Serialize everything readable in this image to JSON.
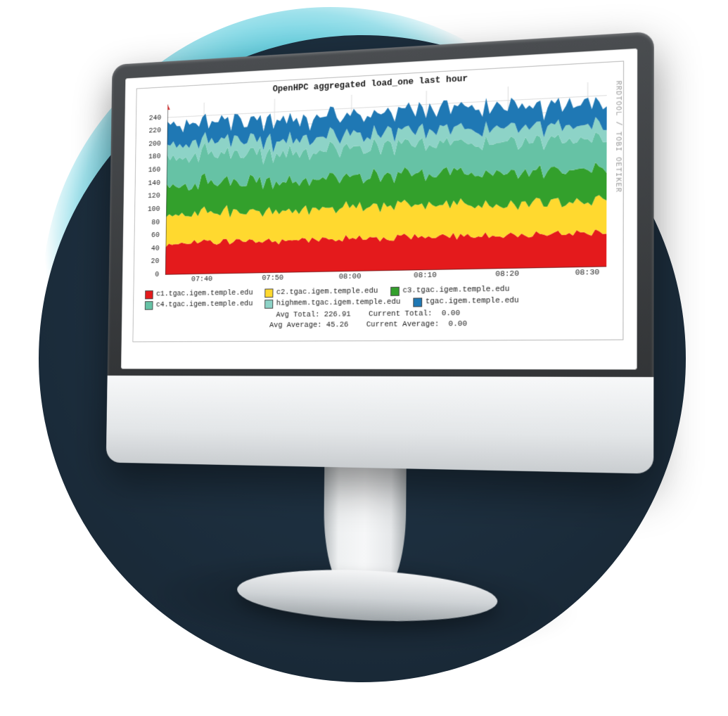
{
  "background": {
    "glow_color": "#3fc4d8",
    "disc_color_inner": "#21374a",
    "disc_color_outer": "#162431"
  },
  "chart": {
    "type": "stacked-area",
    "title": "OpenHPC aggregated load_one last hour",
    "rrd_label": "RRDTOOL / TOBI OETIKER",
    "background_color": "#ffffff",
    "grid_color": "#dcdcdc",
    "grid_color_major": "#e07a7a",
    "axis_color": "#222222",
    "label_fontsize": 11,
    "title_fontsize": 13,
    "ylim": [
      0,
      260
    ],
    "ytick_step": 20,
    "yticks": [
      0,
      20,
      40,
      60,
      80,
      100,
      120,
      140,
      160,
      180,
      200,
      220,
      240
    ],
    "xticks": [
      "07:40",
      "07:50",
      "08:00",
      "08:10",
      "08:20",
      "08:30"
    ],
    "xtick_positions_pct": [
      9,
      26,
      44,
      61,
      79,
      96
    ],
    "series": [
      {
        "name": "c1.tgac.igem.temple.edu",
        "color": "#e41a1c",
        "avg": 48,
        "jitter": 4
      },
      {
        "name": "c2.tgac.igem.temple.edu",
        "color": "#ffd92f",
        "avg": 45,
        "jitter": 5
      },
      {
        "name": "c3.tgac.igem.temple.edu",
        "color": "#33a02c",
        "avg": 45,
        "jitter": 6
      },
      {
        "name": "c4.tgac.igem.temple.edu",
        "color": "#66c2a5",
        "avg": 43,
        "jitter": 5
      },
      {
        "name": "highmem.tgac.igem.temple.edu",
        "color": "#8dd3c7",
        "avg": 20,
        "jitter": 4
      },
      {
        "name": "tgac.igem.temple.edu",
        "color": "#1f78b4",
        "avg": 30,
        "jitter": 6
      }
    ],
    "legend_layout": [
      [
        0,
        1,
        2
      ],
      [
        3,
        4,
        5
      ]
    ],
    "stats": {
      "avg_total_label": "Avg Total:",
      "avg_total": "226.91",
      "current_total_label": "Current Total:",
      "current_total": "0.00",
      "avg_average_label": "Avg Average:",
      "avg_average": "45.26",
      "current_average_label": "Current Average:",
      "current_average": "0.00"
    }
  }
}
